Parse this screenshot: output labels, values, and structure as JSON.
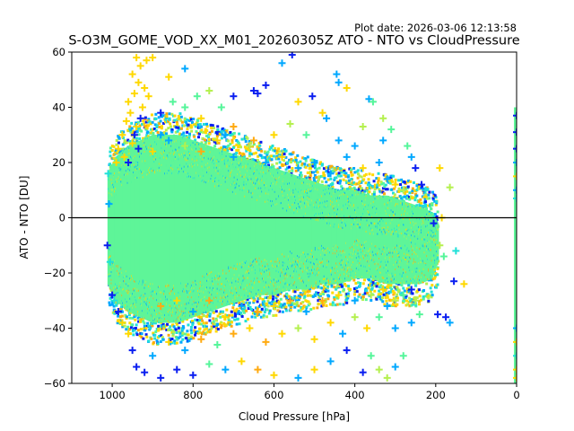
{
  "chart_data": {
    "type": "scatter",
    "title": "S-O3M_GOME_VOD_XX_M01_20260305Z ATO - NTO vs CloudPressure",
    "subtitle": "Plot date: 2026-03-06 12:13:58",
    "xlabel": "Cloud Pressure [hPa]",
    "ylabel": "ATO - NTO [DU]",
    "xlim": [
      1100,
      0
    ],
    "ylim": [
      -60,
      60
    ],
    "x_reversed": true,
    "grid": false,
    "legend": "none",
    "marker": "+",
    "x_ticks": [
      1000,
      800,
      600,
      400,
      200,
      0
    ],
    "x_tick_labels": [
      "1000",
      "800",
      "600",
      "400",
      "200",
      "0"
    ],
    "y_ticks": [
      60,
      40,
      20,
      0,
      -20,
      -40,
      -60
    ],
    "y_tick_labels": [
      "60",
      "40",
      "20",
      "0",
      "−20",
      "−40",
      "−60"
    ],
    "hline": {
      "y": 0,
      "color": "#000000"
    },
    "palette": {
      "blue": "#0a1ef0",
      "sky": "#00a8ff",
      "cyan": "#20e0d8",
      "seafoam": "#55f59a",
      "lime": "#b4f04e",
      "yellow": "#ffd800",
      "orange": "#ffaa10"
    },
    "core_color": "#5ef598",
    "core_bins": [
      {
        "p": 1010,
        "lo": -24,
        "hi": 16
      },
      {
        "p": 990,
        "lo": -30,
        "hi": 22
      },
      {
        "p": 960,
        "lo": -34,
        "hi": 26
      },
      {
        "p": 930,
        "lo": -36,
        "hi": 28
      },
      {
        "p": 900,
        "lo": -38,
        "hi": 30
      },
      {
        "p": 870,
        "lo": -38,
        "hi": 30
      },
      {
        "p": 840,
        "lo": -38,
        "hi": 30
      },
      {
        "p": 800,
        "lo": -36,
        "hi": 28
      },
      {
        "p": 760,
        "lo": -34,
        "hi": 26
      },
      {
        "p": 720,
        "lo": -32,
        "hi": 24
      },
      {
        "p": 680,
        "lo": -30,
        "hi": 22
      },
      {
        "p": 640,
        "lo": -28,
        "hi": 20
      },
      {
        "p": 600,
        "lo": -28,
        "hi": 18
      },
      {
        "p": 560,
        "lo": -26,
        "hi": 16
      },
      {
        "p": 520,
        "lo": -26,
        "hi": 14
      },
      {
        "p": 480,
        "lo": -24,
        "hi": 12
      },
      {
        "p": 440,
        "lo": -24,
        "hi": 10
      },
      {
        "p": 400,
        "lo": -22,
        "hi": 10
      },
      {
        "p": 360,
        "lo": -22,
        "hi": 8
      },
      {
        "p": 320,
        "lo": -24,
        "hi": 8
      },
      {
        "p": 280,
        "lo": -24,
        "hi": 6
      },
      {
        "p": 240,
        "lo": -24,
        "hi": 4
      },
      {
        "p": 210,
        "lo": -22,
        "hi": 2
      },
      {
        "p": 195,
        "lo": -16,
        "hi": -2
      }
    ],
    "band_p": [
      1015,
      185
    ],
    "column_zero": {
      "p": 0,
      "lo": -60,
      "hi": 40
    },
    "points": [
      [
        940,
        58,
        "yellow"
      ],
      [
        930,
        55,
        "yellow"
      ],
      [
        915,
        57,
        "yellow"
      ],
      [
        900,
        58,
        "yellow"
      ],
      [
        950,
        52,
        "yellow"
      ],
      [
        935,
        49,
        "yellow"
      ],
      [
        920,
        47,
        "yellow"
      ],
      [
        945,
        45,
        "yellow"
      ],
      [
        960,
        42,
        "yellow"
      ],
      [
        910,
        44,
        "yellow"
      ],
      [
        955,
        38,
        "yellow"
      ],
      [
        925,
        40,
        "yellow"
      ],
      [
        965,
        35,
        "yellow"
      ],
      [
        940,
        33,
        "yellow"
      ],
      [
        975,
        30,
        "yellow"
      ],
      [
        950,
        27,
        "yellow"
      ],
      [
        985,
        25,
        "yellow"
      ],
      [
        970,
        22,
        "yellow"
      ],
      [
        990,
        20,
        "yellow"
      ],
      [
        930,
        36,
        "blue"
      ],
      [
        945,
        30,
        "blue"
      ],
      [
        960,
        20,
        "blue"
      ],
      [
        935,
        25,
        "blue"
      ],
      [
        880,
        38,
        "blue"
      ],
      [
        820,
        54,
        "sky"
      ],
      [
        860,
        51,
        "yellow"
      ],
      [
        790,
        44,
        "seafoam"
      ],
      [
        760,
        46,
        "lime"
      ],
      [
        730,
        40,
        "seafoam"
      ],
      [
        700,
        44,
        "blue"
      ],
      [
        650,
        46,
        "blue"
      ],
      [
        640,
        45,
        "blue"
      ],
      [
        620,
        48,
        "blue"
      ],
      [
        580,
        56,
        "sky"
      ],
      [
        555,
        59,
        "blue"
      ],
      [
        540,
        42,
        "yellow"
      ],
      [
        505,
        44,
        "blue"
      ],
      [
        445,
        52,
        "sky"
      ],
      [
        440,
        49,
        "sky"
      ],
      [
        420,
        47,
        "yellow"
      ],
      [
        480,
        38,
        "yellow"
      ],
      [
        470,
        36,
        "sky"
      ],
      [
        365,
        43,
        "sky"
      ],
      [
        355,
        42,
        "seafoam"
      ],
      [
        380,
        33,
        "lime"
      ],
      [
        330,
        36,
        "lime"
      ],
      [
        330,
        28,
        "sky"
      ],
      [
        310,
        32,
        "seafoam"
      ],
      [
        270,
        26,
        "seafoam"
      ],
      [
        260,
        22,
        "sky"
      ],
      [
        250,
        18,
        "blue"
      ],
      [
        235,
        12,
        "blue"
      ],
      [
        225,
        10,
        "cyan"
      ],
      [
        190,
        18,
        "yellow"
      ],
      [
        165,
        11,
        "lime"
      ],
      [
        700,
        33,
        "orange"
      ],
      [
        650,
        28,
        "orange"
      ],
      [
        600,
        30,
        "yellow"
      ],
      [
        560,
        34,
        "lime"
      ],
      [
        520,
        30,
        "seafoam"
      ],
      [
        820,
        40,
        "seafoam"
      ],
      [
        850,
        42,
        "seafoam"
      ],
      [
        780,
        36,
        "yellow"
      ],
      [
        720,
        30,
        "sky"
      ],
      [
        880,
        30,
        "sky"
      ],
      [
        1008,
        5,
        "sky"
      ],
      [
        1012,
        -10,
        "blue"
      ],
      [
        1005,
        -16,
        "cyan"
      ],
      [
        1010,
        16,
        "cyan"
      ],
      [
        190,
        -10,
        "lime"
      ],
      [
        180,
        -14,
        "seafoam"
      ],
      [
        205,
        -2,
        "blue"
      ],
      [
        185,
        0,
        "yellow"
      ],
      [
        130,
        -24,
        "yellow"
      ],
      [
        150,
        -12,
        "cyan"
      ],
      [
        155,
        -23,
        "blue"
      ],
      [
        195,
        -35,
        "blue"
      ],
      [
        175,
        -36,
        "blue"
      ],
      [
        165,
        -38,
        "sky"
      ],
      [
        250,
        -30,
        "lime"
      ],
      [
        240,
        -35,
        "seafoam"
      ],
      [
        260,
        -38,
        "sky"
      ],
      [
        300,
        -40,
        "sky"
      ],
      [
        280,
        -50,
        "seafoam"
      ],
      [
        300,
        -54,
        "sky"
      ],
      [
        320,
        -58,
        "lime"
      ],
      [
        340,
        -55,
        "lime"
      ],
      [
        360,
        -50,
        "seafoam"
      ],
      [
        380,
        -56,
        "blue"
      ],
      [
        420,
        -48,
        "blue"
      ],
      [
        460,
        -52,
        "sky"
      ],
      [
        500,
        -55,
        "yellow"
      ],
      [
        540,
        -58,
        "sky"
      ],
      [
        600,
        -57,
        "yellow"
      ],
      [
        640,
        -55,
        "orange"
      ],
      [
        680,
        -52,
        "yellow"
      ],
      [
        720,
        -55,
        "sky"
      ],
      [
        760,
        -53,
        "seafoam"
      ],
      [
        800,
        -57,
        "blue"
      ],
      [
        840,
        -55,
        "blue"
      ],
      [
        880,
        -58,
        "blue"
      ],
      [
        920,
        -56,
        "blue"
      ],
      [
        950,
        -48,
        "blue"
      ],
      [
        940,
        -54,
        "blue"
      ],
      [
        960,
        -42,
        "yellow"
      ],
      [
        975,
        -38,
        "yellow"
      ],
      [
        985,
        -34,
        "blue"
      ],
      [
        995,
        -30,
        "cyan"
      ],
      [
        1000,
        -28,
        "blue"
      ],
      [
        900,
        -50,
        "sky"
      ],
      [
        860,
        -45,
        "yellow"
      ],
      [
        820,
        -48,
        "sky"
      ],
      [
        780,
        -44,
        "orange"
      ],
      [
        740,
        -46,
        "seafoam"
      ],
      [
        700,
        -42,
        "orange"
      ],
      [
        660,
        -40,
        "yellow"
      ],
      [
        620,
        -45,
        "orange"
      ],
      [
        580,
        -42,
        "yellow"
      ],
      [
        540,
        -40,
        "lime"
      ],
      [
        500,
        -44,
        "yellow"
      ],
      [
        460,
        -38,
        "yellow"
      ],
      [
        430,
        -42,
        "sky"
      ],
      [
        400,
        -36,
        "lime"
      ],
      [
        370,
        -40,
        "yellow"
      ],
      [
        340,
        -36,
        "seafoam"
      ],
      [
        320,
        -32,
        "sky"
      ],
      [
        300,
        -30,
        "lime"
      ],
      [
        280,
        -28,
        "seafoam"
      ],
      [
        260,
        -26,
        "blue"
      ],
      [
        880,
        -32,
        "orange"
      ],
      [
        840,
        -30,
        "yellow"
      ],
      [
        800,
        -34,
        "sky"
      ],
      [
        760,
        -30,
        "orange"
      ],
      [
        720,
        -36,
        "yellow"
      ],
      [
        680,
        -32,
        "sky"
      ],
      [
        640,
        -34,
        "orange"
      ],
      [
        600,
        -32,
        "yellow"
      ],
      [
        560,
        -30,
        "orange"
      ],
      [
        520,
        -34,
        "sky"
      ],
      [
        480,
        -30,
        "orange"
      ],
      [
        440,
        -28,
        "yellow"
      ],
      [
        400,
        -30,
        "sky"
      ],
      [
        360,
        -28,
        "lime"
      ],
      [
        330,
        -26,
        "yellow"
      ],
      [
        900,
        24,
        "yellow"
      ],
      [
        860,
        28,
        "sky"
      ],
      [
        820,
        26,
        "lime"
      ],
      [
        780,
        24,
        "orange"
      ],
      [
        740,
        28,
        "yellow"
      ],
      [
        700,
        22,
        "sky"
      ],
      [
        660,
        26,
        "lime"
      ],
      [
        620,
        20,
        "sky"
      ],
      [
        580,
        22,
        "yellow"
      ],
      [
        540,
        18,
        "sky"
      ],
      [
        500,
        20,
        "sky"
      ],
      [
        460,
        16,
        "sky"
      ],
      [
        420,
        22,
        "sky"
      ],
      [
        380,
        18,
        "yellow"
      ],
      [
        340,
        20,
        "sky"
      ],
      [
        320,
        14,
        "sky"
      ],
      [
        300,
        12,
        "yellow"
      ],
      [
        280,
        10,
        "lime"
      ],
      [
        440,
        28,
        "sky"
      ],
      [
        400,
        26,
        "sky"
      ]
    ],
    "zero_column_points": [
      [
        0,
        37,
        "blue"
      ],
      [
        0,
        31,
        "blue"
      ],
      [
        0,
        25,
        "blue"
      ],
      [
        0,
        20,
        "sky"
      ],
      [
        0,
        15,
        "yellow"
      ],
      [
        0,
        10,
        "sky"
      ],
      [
        0,
        7,
        "cyan"
      ],
      [
        0,
        -40,
        "sky"
      ],
      [
        0,
        -45,
        "yellow"
      ],
      [
        0,
        -50,
        "cyan"
      ],
      [
        0,
        -55,
        "yellow"
      ],
      [
        0,
        -58,
        "yellow"
      ]
    ]
  }
}
